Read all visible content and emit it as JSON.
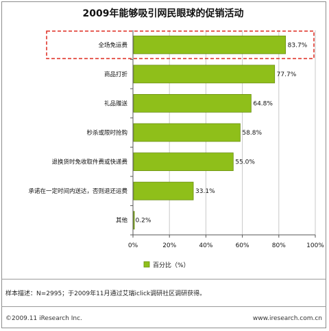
{
  "chart_data": {
    "type": "bar",
    "orientation": "horizontal",
    "title": "2009年能够吸引网民眼球的促销活动",
    "categories": [
      "全场免运费",
      "商品打折",
      "礼品赠送",
      "秒杀或限时抢购",
      "退换货时免收取件费或快递费",
      "承诺在一定时间内送达，否则退还运费",
      "其他"
    ],
    "series": [
      {
        "name": "百分比（%）",
        "values": [
          83.7,
          77.7,
          64.8,
          58.8,
          55.0,
          33.1,
          0.2
        ]
      }
    ],
    "value_labels": [
      "83.7%",
      "77.7%",
      "64.8%",
      "58.8%",
      "55.0%",
      "33.1%",
      "0.2%"
    ],
    "xlim": [
      0,
      100
    ],
    "xticks": [
      "0%",
      "20%",
      "40%",
      "60%",
      "80%",
      "100%"
    ],
    "grid": true,
    "legend": "bottom",
    "highlight_category": "全场免运费",
    "colors": {
      "bar": "#8fbf1a",
      "bar_edge": "#6a8f10",
      "highlight": "#e0352b",
      "grid": "#c8c8c8"
    }
  },
  "note": "样本描述：N=2995；于2009年11月通过艾瑞iclick调研社区调研获得。",
  "footer": {
    "copyright": "©2009.11 iResearch Inc.",
    "website": "www.iresearch.com.cn"
  }
}
